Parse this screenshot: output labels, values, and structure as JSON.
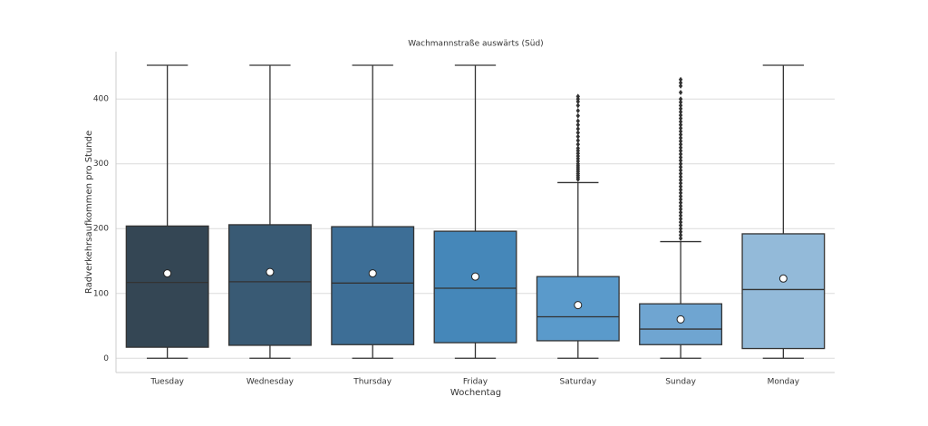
{
  "chart_data": {
    "type": "box",
    "title": "Wachmannstraße auswärts (Süd)",
    "x_label": "Wochentag",
    "y_label": "Radverkehrsaufkommen pro Stunde",
    "categories": [
      "Tuesday",
      "Wednesday",
      "Thursday",
      "Friday",
      "Saturday",
      "Sunday",
      "Monday"
    ],
    "ylim": [
      -22,
      473
    ],
    "yticks": [
      0,
      100,
      200,
      300,
      400
    ],
    "grid": true,
    "boxes": [
      {
        "color": "#344654",
        "whislo": 0,
        "q1": 17,
        "med": 117,
        "q3": 204,
        "whishi": 452,
        "mean": 131,
        "fliers": []
      },
      {
        "color": "#395a74",
        "whislo": 0,
        "q1": 20,
        "med": 118,
        "q3": 206,
        "whishi": 452,
        "mean": 133,
        "fliers": []
      },
      {
        "color": "#3d6e96",
        "whislo": 0,
        "q1": 21,
        "med": 116,
        "q3": 203,
        "whishi": 452,
        "mean": 131,
        "fliers": []
      },
      {
        "color": "#4587b9",
        "whislo": 0,
        "q1": 24,
        "med": 108,
        "q3": 196,
        "whishi": 452,
        "mean": 126,
        "fliers": []
      },
      {
        "color": "#5a9acb",
        "whislo": 0,
        "q1": 27,
        "med": 64,
        "q3": 126,
        "whishi": 271,
        "mean": 82,
        "fliers": [
          276,
          279,
          282,
          285,
          288,
          291,
          294,
          297,
          300,
          304,
          308,
          312,
          316,
          320,
          324,
          330,
          336,
          342,
          348,
          354,
          360,
          366,
          374,
          382,
          390,
          396,
          400,
          404
        ]
      },
      {
        "color": "#6fa5d1",
        "whislo": 0,
        "q1": 21,
        "med": 45,
        "q3": 84,
        "whishi": 180,
        "mean": 60,
        "fliers": [
          185,
          190,
          195,
          200,
          205,
          210,
          215,
          220,
          225,
          230,
          235,
          240,
          245,
          250,
          255,
          260,
          265,
          270,
          275,
          280,
          285,
          290,
          295,
          300,
          305,
          310,
          315,
          320,
          325,
          330,
          335,
          340,
          345,
          350,
          355,
          360,
          365,
          370,
          375,
          380,
          385,
          390,
          395,
          400,
          410,
          420,
          425,
          430
        ]
      },
      {
        "color": "#93bad9",
        "whislo": 0,
        "q1": 15,
        "med": 106,
        "q3": 192,
        "whishi": 452,
        "mean": 123,
        "fliers": []
      }
    ]
  }
}
